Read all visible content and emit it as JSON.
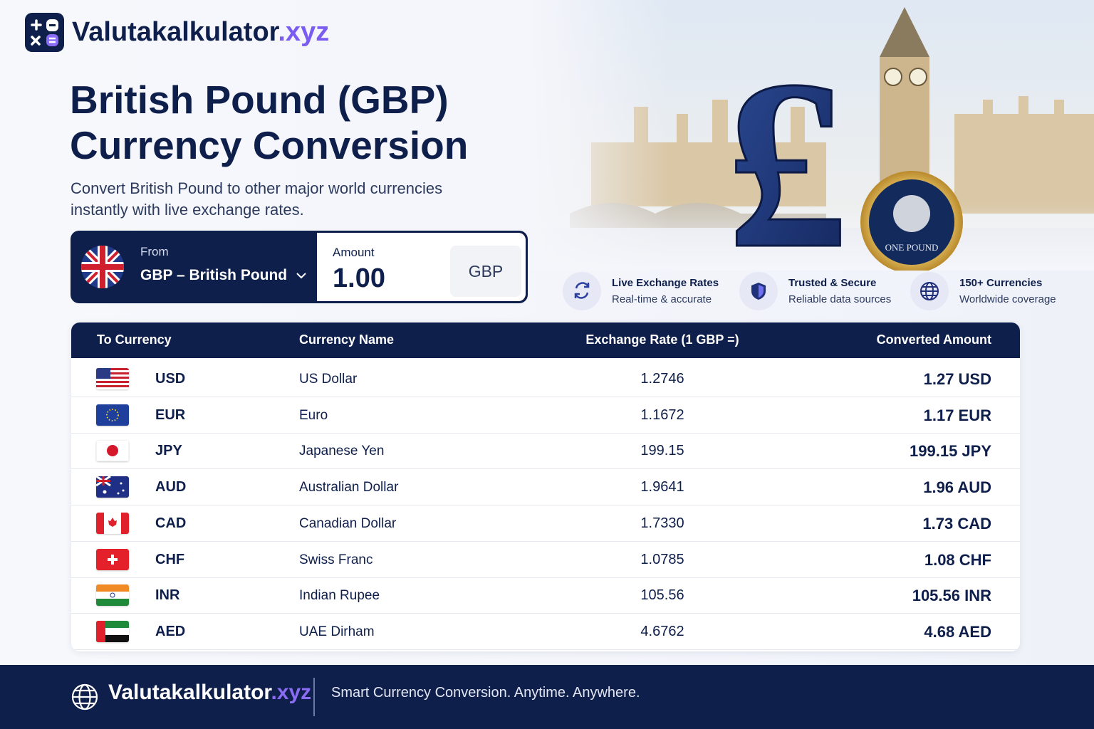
{
  "logo": {
    "name": "Valutakalkulator",
    "tld": ".xyz"
  },
  "hero": {
    "title_line1": "British Pound (GBP)",
    "title_line2": "Currency Conversion",
    "subtitle_line1": "Convert British Pound to other major world currencies",
    "subtitle_line2": "instantly with live exchange rates.",
    "symbol": "£",
    "coin_text": "ONE POUND"
  },
  "converter": {
    "from_label": "From",
    "from_value": "GBP – British Pound",
    "amount_label": "Amount",
    "amount": "1.00",
    "amount_currency": "GBP"
  },
  "features": [
    {
      "title": "Live Exchange Rates",
      "subtitle": "Real-time & accurate"
    },
    {
      "title": "Trusted & Secure",
      "subtitle": "Reliable data sources"
    },
    {
      "title": "150+ Currencies",
      "subtitle": "Worldwide coverage"
    }
  ],
  "table": {
    "headers": [
      "To Currency",
      "Currency Name",
      "Exchange Rate (1 GBP =)",
      "Converted Amount"
    ],
    "rows": [
      [
        "USD",
        "US Dollar",
        "1.2746",
        "1.27 USD"
      ],
      [
        "EUR",
        "Euro",
        "1.1672",
        "1.17 EUR"
      ],
      [
        "JPY",
        "Japanese Yen",
        "199.15",
        "199.15 JPY"
      ],
      [
        "AUD",
        "Australian Dollar",
        "1.9641",
        "1.96 AUD"
      ],
      [
        "CAD",
        "Canadian Dollar",
        "1.7330",
        "1.73 CAD"
      ],
      [
        "CHF",
        "Swiss Franc",
        "1.0785",
        "1.08 CHF"
      ],
      [
        "INR",
        "Indian Rupee",
        "105.56",
        "105.56 INR"
      ],
      [
        "AED",
        "UAE Dirham",
        "4.6762",
        "4.68 AED"
      ]
    ]
  },
  "footer": {
    "brand_name": "Valutakalkulator",
    "brand_tld": ".xyz",
    "tagline": "Smart Currency Conversion. Anytime. Anywhere."
  }
}
